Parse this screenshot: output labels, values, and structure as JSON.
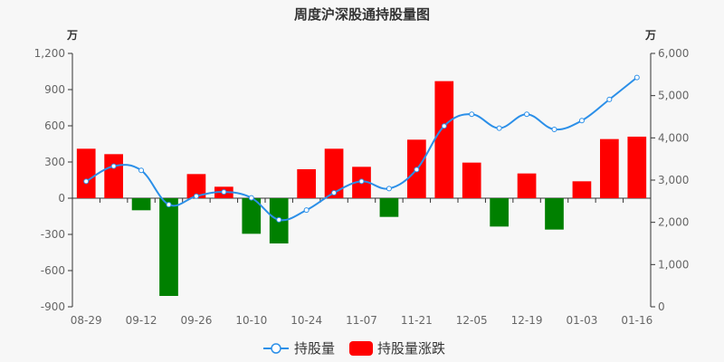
{
  "colors": {
    "line": "#2b8fe8",
    "bar_up": "#ff0000",
    "bar_down": "#008000",
    "axis": "#333333",
    "grid": "#e0e0e0"
  },
  "chart_data": {
    "type": "bar+line",
    "title": "周度沪深股通持股量图",
    "left_unit": "万",
    "right_unit": "万",
    "x_ticks": [
      "08-29",
      "09-12",
      "09-26",
      "10-10",
      "10-24",
      "11-07",
      "11-21",
      "12-05",
      "12-19",
      "01-03",
      "01-16"
    ],
    "y_left": {
      "min": -900,
      "max": 1200,
      "ticks": [
        "1,200",
        "900",
        "600",
        "300",
        "0",
        "-300",
        "-600",
        "-900"
      ]
    },
    "y_right": {
      "min": 0,
      "max": 6000,
      "ticks": [
        "6,000",
        "5,000",
        "4,000",
        "3,000",
        "2,000",
        "1,000",
        "0"
      ]
    },
    "grid": false,
    "legend_position": "bottom-center",
    "series": [
      {
        "name": "持股量",
        "axis": "right",
        "type": "line",
        "values": [
          2970,
          3330,
          3230,
          2420,
          2620,
          2720,
          2580,
          2060,
          2290,
          2700,
          2970,
          2800,
          3250,
          4280,
          4560,
          4230,
          4560,
          4200,
          4410,
          4910,
          5430
        ]
      },
      {
        "name": "持股量涨跌",
        "axis": "left",
        "type": "bar",
        "values": [
          410,
          365,
          -100,
          -810,
          200,
          95,
          -295,
          -375,
          240,
          410,
          260,
          -155,
          485,
          970,
          295,
          -235,
          205,
          -260,
          140,
          490,
          510
        ]
      }
    ]
  }
}
